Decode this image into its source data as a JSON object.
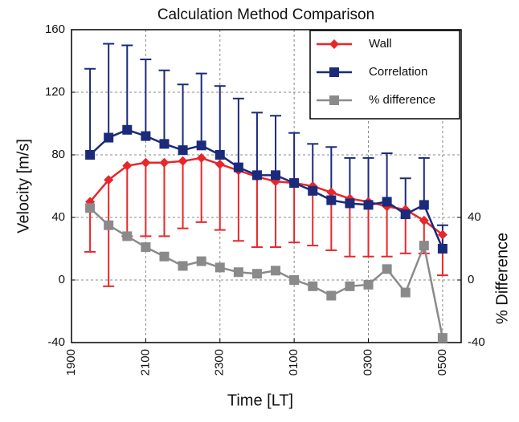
{
  "chart_data": {
    "type": "line",
    "title": "Calculation Method Comparison",
    "x_label": "Time [LT]",
    "y_label": "Velocity [m/s]",
    "y2_label": "% Difference",
    "categories": [
      "1900",
      null,
      null,
      null,
      "2100",
      null,
      null,
      null,
      "2300",
      null,
      null,
      null,
      "0100",
      null,
      null,
      null,
      "0300",
      null,
      null,
      null,
      "0500",
      null
    ],
    "ylim": [
      -40,
      160
    ],
    "yticks": [
      -40,
      0,
      40,
      80,
      120,
      160
    ],
    "y2lim": [
      -40,
      160
    ],
    "y2ticks": [
      -40,
      0,
      40
    ],
    "grid": true,
    "legend": "upper right",
    "series": [
      {
        "name": "Wall",
        "color": "#e8262b",
        "marker": "diamond",
        "error_direction": "down",
        "values": [
          null,
          50,
          64,
          73,
          75,
          75,
          76,
          78,
          74,
          70,
          66,
          63,
          62,
          60,
          56,
          52,
          50,
          47,
          45,
          38,
          29,
          null
        ],
        "errors": [
          null,
          32,
          68,
          45,
          47,
          47,
          43,
          41,
          42,
          45,
          45,
          42,
          38,
          38,
          37,
          37,
          35,
          32,
          28,
          21,
          26,
          null
        ]
      },
      {
        "name": "Correlation",
        "color": "#1b2a7a",
        "marker": "square",
        "error_direction": "up",
        "values": [
          null,
          80,
          91,
          96,
          92,
          87,
          83,
          86,
          80,
          72,
          67,
          67,
          62,
          57,
          51,
          49,
          48,
          50,
          42,
          48,
          20,
          null
        ],
        "errors": [
          null,
          55,
          60,
          54,
          49,
          47,
          42,
          46,
          44,
          44,
          40,
          38,
          32,
          30,
          34,
          29,
          30,
          31,
          23,
          30,
          15,
          null
        ]
      },
      {
        "name": "% difference",
        "color": "#8a8a8a",
        "marker": "square",
        "axis": "y2",
        "values": [
          null,
          46,
          35,
          28,
          21,
          15,
          9,
          12,
          8,
          5,
          4,
          6,
          0,
          -4,
          -10,
          -4,
          -3,
          7,
          -8,
          22,
          -37,
          null
        ]
      }
    ]
  }
}
